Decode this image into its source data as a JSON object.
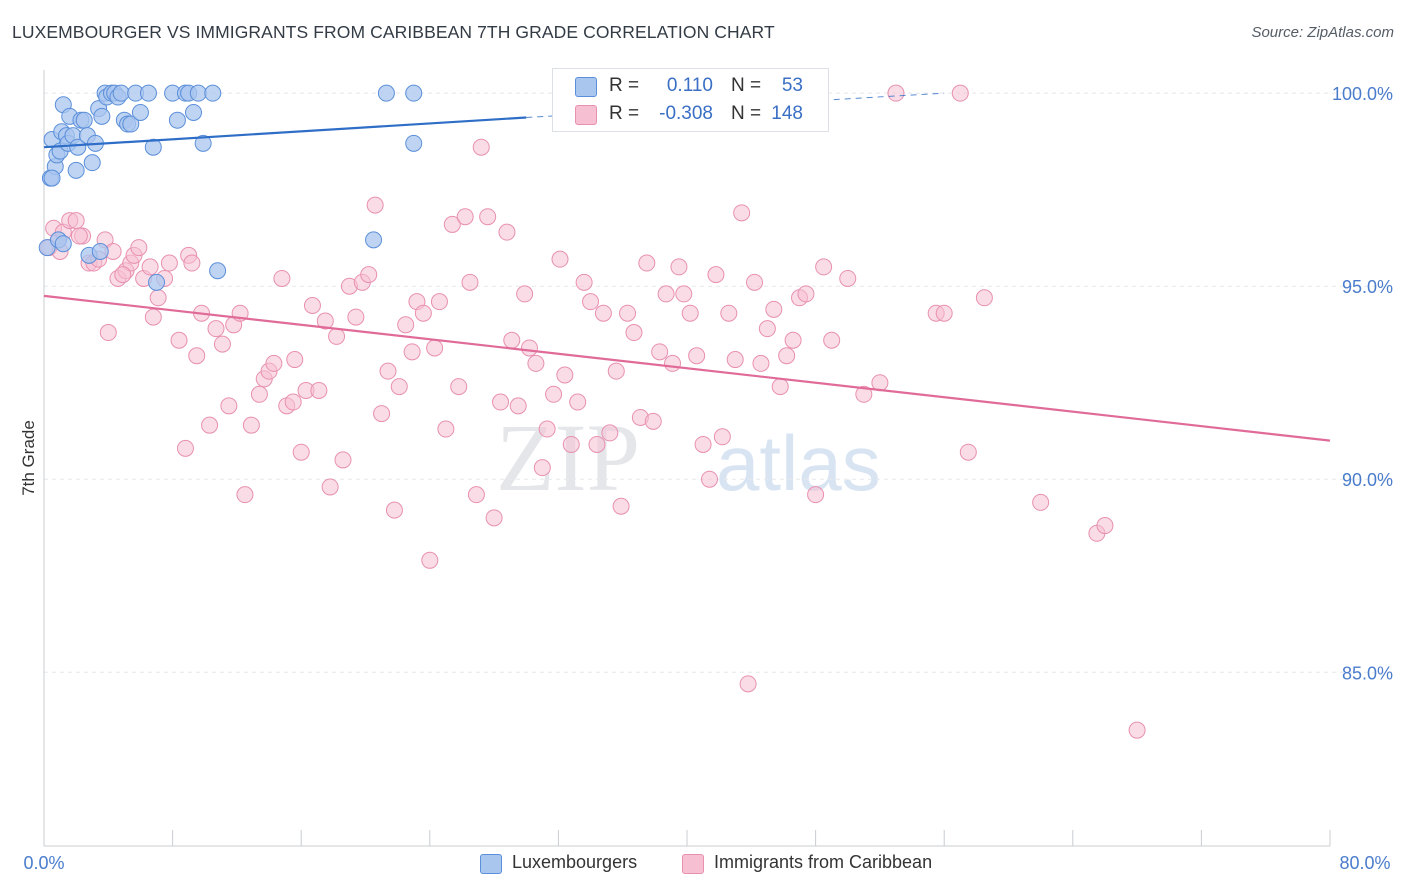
{
  "title": "LUXEMBOURGER VS IMMIGRANTS FROM CARIBBEAN 7TH GRADE CORRELATION CHART",
  "source": "Source: ZipAtlas.com",
  "watermark": {
    "zip": "ZIP",
    "atlas": "atlas"
  },
  "colors": {
    "blue_fill": "#a9c6ef",
    "blue_stroke": "#5b8fd9",
    "blue_line": "#2f6ec7",
    "pink_fill": "#f6c0d2",
    "pink_stroke": "#e890b0",
    "pink_line": "#e06b98",
    "axis_label": "#4a7ccc",
    "grid": "#e6e8ec"
  },
  "legend_top": [
    {
      "r_label": "R =",
      "r_value": "0.110",
      "n_label": "N =",
      "n_value": "53"
    },
    {
      "r_label": "R =",
      "r_value": "-0.308",
      "n_label": "N =",
      "n_value": "148"
    }
  ],
  "legend_bottom": [
    "Luxembourgers",
    "Immigrants from Caribbean"
  ],
  "chart_data": {
    "type": "scatter",
    "title": "LUXEMBOURGER VS IMMIGRANTS FROM CARIBBEAN 7TH GRADE CORRELATION CHART",
    "xlabel": "",
    "ylabel": "7th Grade",
    "xlim": [
      0,
      80
    ],
    "ylim": [
      80.5,
      100.6
    ],
    "x_tick_labels": [
      "0.0%",
      "80.0%"
    ],
    "y_ticks": [
      85,
      90,
      95,
      100
    ],
    "y_tick_labels": [
      "85.0%",
      "90.0%",
      "95.0%",
      "100.0%"
    ],
    "grid": true,
    "series": [
      {
        "name": "Luxembourgers",
        "r": 0.11,
        "n": 53,
        "trend": {
          "x0": 0,
          "y0": 98.6,
          "x1": 30,
          "y1": 99.37,
          "dash_x1": 56,
          "dash_y1": 100.0
        },
        "points": [
          [
            0.2,
            96.0
          ],
          [
            0.4,
            97.8
          ],
          [
            0.5,
            98.8
          ],
          [
            0.7,
            98.1
          ],
          [
            0.8,
            98.4
          ],
          [
            0.9,
            96.2
          ],
          [
            1.0,
            98.5
          ],
          [
            1.1,
            99.0
          ],
          [
            1.2,
            99.7
          ],
          [
            1.4,
            98.9
          ],
          [
            1.5,
            98.7
          ],
          [
            1.6,
            99.4
          ],
          [
            1.8,
            98.9
          ],
          [
            2.0,
            98.0
          ],
          [
            2.1,
            98.6
          ],
          [
            2.3,
            99.3
          ],
          [
            2.5,
            99.3
          ],
          [
            2.7,
            98.9
          ],
          [
            3.0,
            98.2
          ],
          [
            3.2,
            98.7
          ],
          [
            3.4,
            99.6
          ],
          [
            3.6,
            99.4
          ],
          [
            3.8,
            100.0
          ],
          [
            3.9,
            99.9
          ],
          [
            4.2,
            100.0
          ],
          [
            4.4,
            100.0
          ],
          [
            4.6,
            99.9
          ],
          [
            4.8,
            100.0
          ],
          [
            5.0,
            99.3
          ],
          [
            5.2,
            99.2
          ],
          [
            5.4,
            99.2
          ],
          [
            5.7,
            100.0
          ],
          [
            6.0,
            99.5
          ],
          [
            6.5,
            100.0
          ],
          [
            6.8,
            98.6
          ],
          [
            7.0,
            95.1
          ],
          [
            8.0,
            100.0
          ],
          [
            8.3,
            99.3
          ],
          [
            8.8,
            100.0
          ],
          [
            9.0,
            100.0
          ],
          [
            9.3,
            99.5
          ],
          [
            9.6,
            100.0
          ],
          [
            9.9,
            98.7
          ],
          [
            10.5,
            100.0
          ],
          [
            10.8,
            95.4
          ],
          [
            1.2,
            96.1
          ],
          [
            2.8,
            95.8
          ],
          [
            3.5,
            95.9
          ],
          [
            21.3,
            100.0
          ],
          [
            23.0,
            100.0
          ],
          [
            23.0,
            98.7
          ],
          [
            0.5,
            97.8
          ],
          [
            20.5,
            96.2
          ]
        ]
      },
      {
        "name": "Immigrants from Caribbean",
        "r": -0.308,
        "n": 148,
        "trend": {
          "x0": 0,
          "y0": 94.75,
          "x1": 80,
          "y1": 91.0
        },
        "points": [
          [
            0.3,
            96.0
          ],
          [
            0.6,
            96.5
          ],
          [
            0.9,
            96.2
          ],
          [
            1.2,
            96.4
          ],
          [
            1.6,
            96.7
          ],
          [
            2.0,
            96.7
          ],
          [
            2.4,
            96.3
          ],
          [
            2.8,
            95.6
          ],
          [
            3.1,
            95.6
          ],
          [
            3.4,
            95.7
          ],
          [
            3.8,
            96.2
          ],
          [
            4.0,
            93.8
          ],
          [
            4.3,
            95.9
          ],
          [
            4.6,
            95.2
          ],
          [
            5.1,
            95.4
          ],
          [
            5.4,
            95.6
          ],
          [
            5.6,
            95.8
          ],
          [
            5.9,
            96.0
          ],
          [
            6.2,
            95.2
          ],
          [
            6.6,
            95.5
          ],
          [
            6.8,
            94.2
          ],
          [
            7.1,
            94.7
          ],
          [
            7.5,
            95.2
          ],
          [
            7.8,
            95.6
          ],
          [
            8.4,
            93.6
          ],
          [
            8.8,
            90.8
          ],
          [
            9.0,
            95.8
          ],
          [
            9.5,
            93.2
          ],
          [
            9.8,
            94.3
          ],
          [
            10.3,
            91.4
          ],
          [
            10.7,
            93.9
          ],
          [
            11.1,
            93.5
          ],
          [
            11.5,
            91.9
          ],
          [
            11.8,
            94.0
          ],
          [
            12.2,
            94.3
          ],
          [
            12.5,
            89.6
          ],
          [
            12.9,
            91.4
          ],
          [
            13.4,
            92.2
          ],
          [
            13.7,
            92.6
          ],
          [
            14.0,
            92.8
          ],
          [
            14.3,
            93.0
          ],
          [
            14.8,
            95.2
          ],
          [
            15.1,
            91.9
          ],
          [
            15.6,
            93.1
          ],
          [
            16.0,
            90.7
          ],
          [
            16.3,
            92.3
          ],
          [
            16.7,
            94.5
          ],
          [
            17.1,
            92.3
          ],
          [
            17.5,
            94.1
          ],
          [
            17.8,
            89.8
          ],
          [
            18.2,
            93.7
          ],
          [
            18.6,
            90.5
          ],
          [
            19.0,
            95.0
          ],
          [
            19.4,
            94.2
          ],
          [
            19.8,
            95.1
          ],
          [
            20.2,
            95.3
          ],
          [
            20.6,
            97.1
          ],
          [
            21.0,
            91.7
          ],
          [
            21.4,
            92.8
          ],
          [
            21.8,
            89.2
          ],
          [
            22.1,
            92.4
          ],
          [
            22.5,
            94.0
          ],
          [
            22.9,
            93.3
          ],
          [
            23.2,
            94.6
          ],
          [
            23.6,
            94.3
          ],
          [
            24.0,
            87.9
          ],
          [
            24.3,
            93.4
          ],
          [
            24.6,
            94.6
          ],
          [
            25.0,
            91.3
          ],
          [
            25.4,
            96.6
          ],
          [
            25.8,
            92.4
          ],
          [
            26.2,
            96.8
          ],
          [
            26.5,
            95.1
          ],
          [
            26.9,
            89.6
          ],
          [
            27.2,
            98.6
          ],
          [
            27.6,
            96.8
          ],
          [
            28.0,
            89.0
          ],
          [
            28.4,
            92.0
          ],
          [
            28.8,
            96.4
          ],
          [
            29.1,
            93.6
          ],
          [
            29.5,
            91.9
          ],
          [
            29.9,
            94.8
          ],
          [
            30.2,
            93.4
          ],
          [
            30.6,
            93.0
          ],
          [
            31.0,
            90.3
          ],
          [
            31.3,
            91.3
          ],
          [
            31.7,
            92.2
          ],
          [
            32.1,
            95.7
          ],
          [
            32.4,
            92.7
          ],
          [
            32.8,
            90.9
          ],
          [
            33.2,
            92.0
          ],
          [
            33.6,
            95.1
          ],
          [
            34.0,
            94.6
          ],
          [
            34.4,
            90.9
          ],
          [
            34.8,
            94.3
          ],
          [
            35.2,
            91.2
          ],
          [
            35.6,
            92.8
          ],
          [
            35.9,
            89.3
          ],
          [
            36.3,
            94.3
          ],
          [
            36.7,
            93.8
          ],
          [
            37.1,
            91.6
          ],
          [
            37.5,
            95.6
          ],
          [
            37.9,
            91.5
          ],
          [
            38.3,
            93.3
          ],
          [
            38.7,
            94.8
          ],
          [
            39.1,
            93.0
          ],
          [
            39.5,
            95.5
          ],
          [
            39.8,
            94.8
          ],
          [
            40.2,
            94.3
          ],
          [
            40.6,
            93.2
          ],
          [
            41.0,
            90.9
          ],
          [
            41.4,
            90.0
          ],
          [
            41.8,
            95.3
          ],
          [
            42.2,
            91.1
          ],
          [
            42.6,
            94.3
          ],
          [
            43.0,
            93.1
          ],
          [
            43.4,
            96.9
          ],
          [
            43.8,
            84.7
          ],
          [
            44.2,
            95.1
          ],
          [
            44.6,
            93.0
          ],
          [
            45.0,
            93.9
          ],
          [
            45.4,
            94.4
          ],
          [
            45.8,
            92.4
          ],
          [
            46.2,
            93.2
          ],
          [
            46.6,
            93.6
          ],
          [
            47.0,
            94.7
          ],
          [
            47.4,
            94.8
          ],
          [
            48.0,
            89.6
          ],
          [
            48.5,
            95.5
          ],
          [
            49.0,
            93.6
          ],
          [
            50.0,
            95.2
          ],
          [
            51.0,
            92.2
          ],
          [
            52.0,
            92.5
          ],
          [
            53.0,
            100.0
          ],
          [
            55.5,
            94.3
          ],
          [
            56.0,
            94.3
          ],
          [
            57.0,
            100.0
          ],
          [
            57.5,
            90.7
          ],
          [
            58.5,
            94.7
          ],
          [
            62.0,
            89.4
          ],
          [
            65.5,
            88.6
          ],
          [
            66.0,
            88.8
          ],
          [
            68.0,
            83.5
          ],
          [
            1.0,
            95.9
          ],
          [
            2.2,
            96.3
          ],
          [
            4.9,
            95.3
          ],
          [
            9.2,
            95.6
          ],
          [
            15.5,
            92.0
          ]
        ]
      }
    ]
  }
}
